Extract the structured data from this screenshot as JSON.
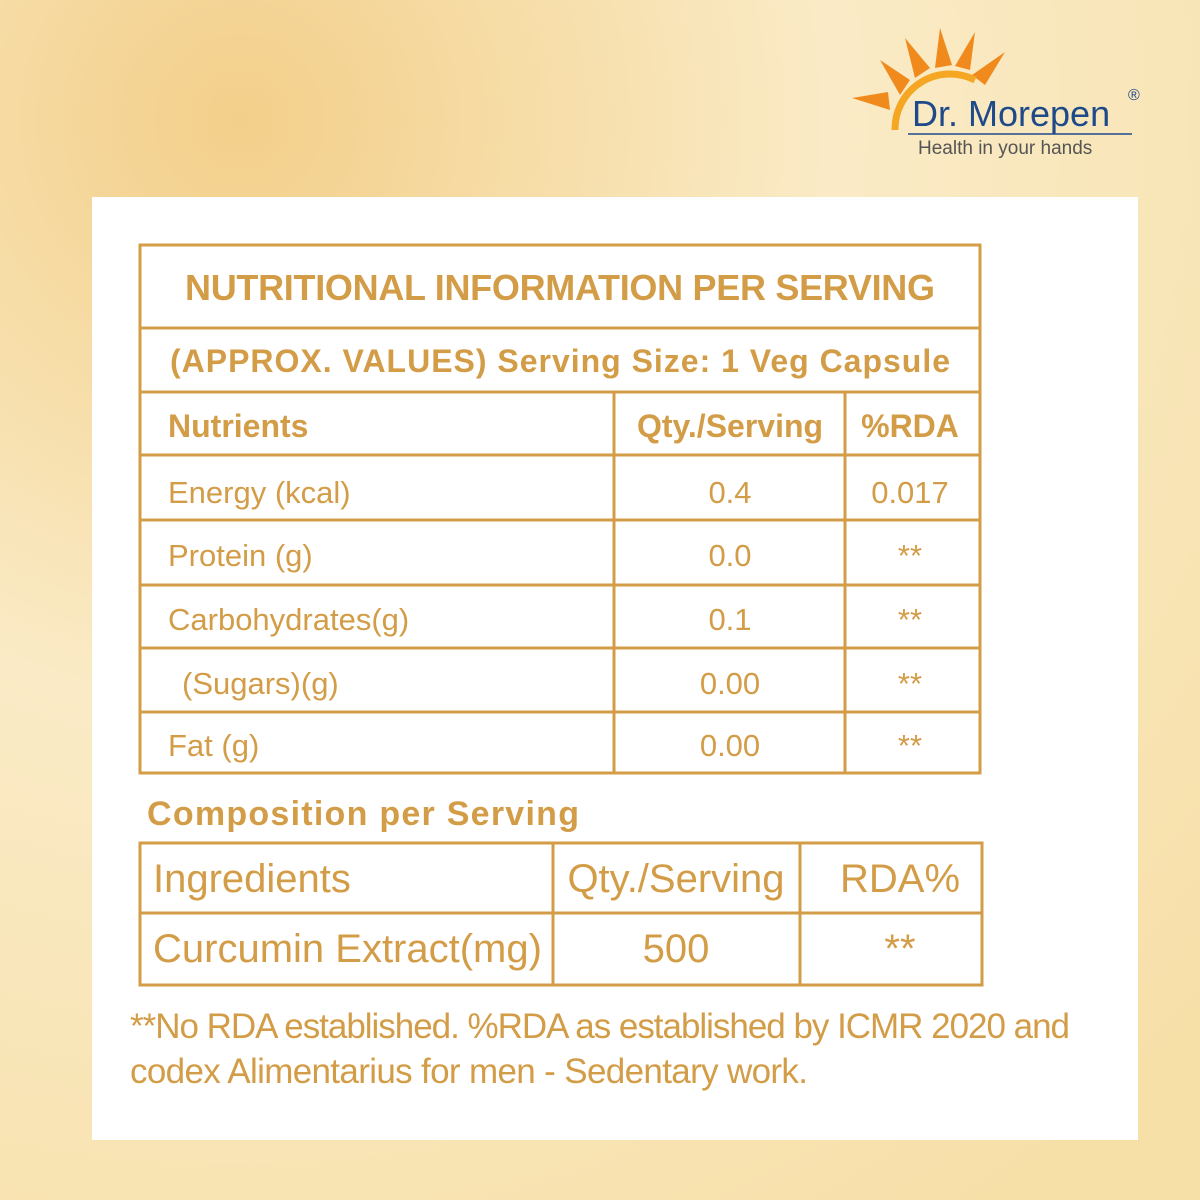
{
  "logo": {
    "brand": "Dr. Morepen",
    "mark": "®",
    "tagline": "Health in your hands"
  },
  "nutrition": {
    "title": "NUTRITIONAL INFORMATION PER SERVING",
    "subtitle": "(APPROX. VALUES) Serving Size: 1 Veg Capsule",
    "header": [
      "Nutrients",
      "Qty./Serving",
      "%RDA"
    ],
    "rows": [
      [
        "Energy (kcal)",
        "0.4",
        "0.017"
      ],
      [
        "Protein (g)",
        "0.0",
        "**"
      ],
      [
        "Carbohydrates(g)",
        "0.1",
        "**"
      ],
      [
        "(Sugars)(g)",
        "0.00",
        "**"
      ],
      [
        "Fat (g)",
        "0.00",
        "**"
      ]
    ]
  },
  "composition": {
    "title": "Composition per Serving",
    "header": [
      "Ingredients",
      "Qty./Serving",
      "RDA%"
    ],
    "rows": [
      [
        "Curcumin Extract(mg)",
        "500",
        "**"
      ]
    ]
  },
  "footnote": [
    "**No RDA established. %RDA as established by ICMR 2020 and",
    "codex Alimentarius for men - Sedentary work."
  ]
}
